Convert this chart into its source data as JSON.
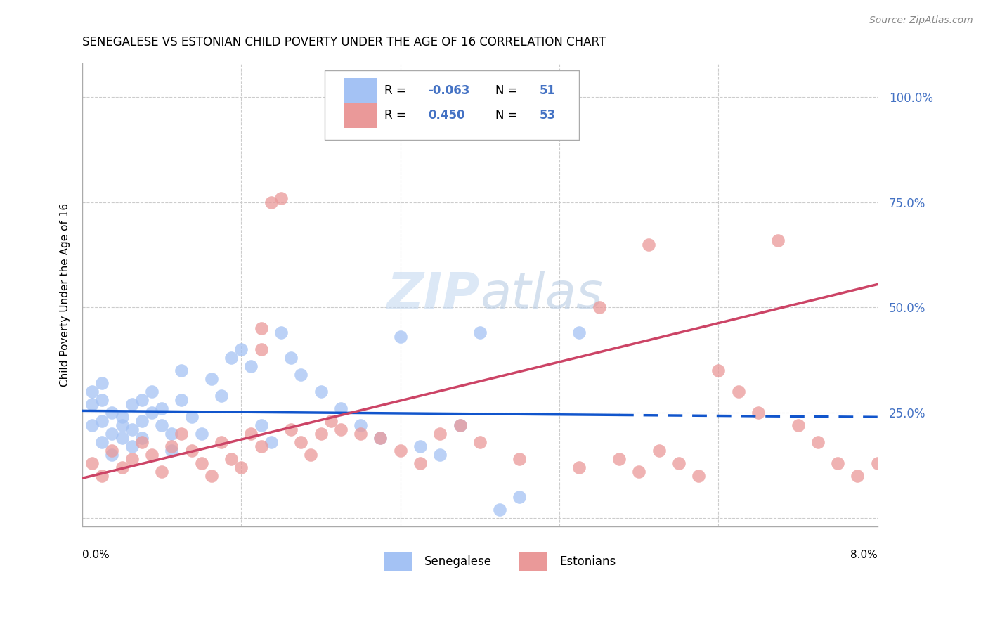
{
  "title": "SENEGALESE VS ESTONIAN CHILD POVERTY UNDER THE AGE OF 16 CORRELATION CHART",
  "source": "Source: ZipAtlas.com",
  "ylabel": "Child Poverty Under the Age of 16",
  "xmin": 0.0,
  "xmax": 0.08,
  "ymin": -0.02,
  "ymax": 1.08,
  "yticks": [
    0.0,
    0.25,
    0.5,
    0.75,
    1.0
  ],
  "ytick_labels": [
    "",
    "25.0%",
    "50.0%",
    "75.0%",
    "100.0%"
  ],
  "legend_blue_R": "-0.063",
  "legend_blue_N": "51",
  "legend_pink_R": "0.450",
  "legend_pink_N": "53",
  "color_blue": "#a4c2f4",
  "color_pink": "#ea9999",
  "color_blue_line": "#1155cc",
  "color_pink_line": "#cc4466",
  "senegalese_x": [
    0.001,
    0.001,
    0.001,
    0.002,
    0.002,
    0.002,
    0.002,
    0.003,
    0.003,
    0.003,
    0.004,
    0.004,
    0.004,
    0.005,
    0.005,
    0.005,
    0.006,
    0.006,
    0.006,
    0.007,
    0.007,
    0.008,
    0.008,
    0.009,
    0.009,
    0.01,
    0.01,
    0.011,
    0.012,
    0.013,
    0.014,
    0.015,
    0.016,
    0.017,
    0.018,
    0.019,
    0.02,
    0.021,
    0.022,
    0.024,
    0.026,
    0.028,
    0.03,
    0.032,
    0.034,
    0.036,
    0.038,
    0.04,
    0.042,
    0.044,
    0.05
  ],
  "senegalese_y": [
    0.22,
    0.27,
    0.3,
    0.18,
    0.23,
    0.28,
    0.32,
    0.2,
    0.25,
    0.15,
    0.24,
    0.19,
    0.22,
    0.27,
    0.21,
    0.17,
    0.28,
    0.23,
    0.19,
    0.3,
    0.25,
    0.26,
    0.22,
    0.2,
    0.16,
    0.35,
    0.28,
    0.24,
    0.2,
    0.33,
    0.29,
    0.38,
    0.4,
    0.36,
    0.22,
    0.18,
    0.44,
    0.38,
    0.34,
    0.3,
    0.26,
    0.22,
    0.19,
    0.43,
    0.17,
    0.15,
    0.22,
    0.44,
    0.02,
    0.05,
    0.44
  ],
  "estonian_x": [
    0.001,
    0.002,
    0.003,
    0.004,
    0.005,
    0.006,
    0.007,
    0.008,
    0.009,
    0.01,
    0.011,
    0.012,
    0.013,
    0.014,
    0.015,
    0.016,
    0.017,
    0.018,
    0.019,
    0.02,
    0.021,
    0.022,
    0.023,
    0.024,
    0.025,
    0.026,
    0.028,
    0.03,
    0.032,
    0.034,
    0.036,
    0.038,
    0.04,
    0.044,
    0.05,
    0.052,
    0.054,
    0.056,
    0.058,
    0.06,
    0.062,
    0.064,
    0.066,
    0.068,
    0.07,
    0.072,
    0.074,
    0.076,
    0.078,
    0.08,
    0.018,
    0.018,
    0.057
  ],
  "estonian_y": [
    0.13,
    0.1,
    0.16,
    0.12,
    0.14,
    0.18,
    0.15,
    0.11,
    0.17,
    0.2,
    0.16,
    0.13,
    0.1,
    0.18,
    0.14,
    0.12,
    0.2,
    0.17,
    0.75,
    0.76,
    0.21,
    0.18,
    0.15,
    0.2,
    0.23,
    0.21,
    0.2,
    0.19,
    0.16,
    0.13,
    0.2,
    0.22,
    0.18,
    0.14,
    0.12,
    0.5,
    0.14,
    0.11,
    0.16,
    0.13,
    0.1,
    0.35,
    0.3,
    0.25,
    0.66,
    0.22,
    0.18,
    0.13,
    0.1,
    0.13,
    0.45,
    0.4,
    0.65
  ]
}
